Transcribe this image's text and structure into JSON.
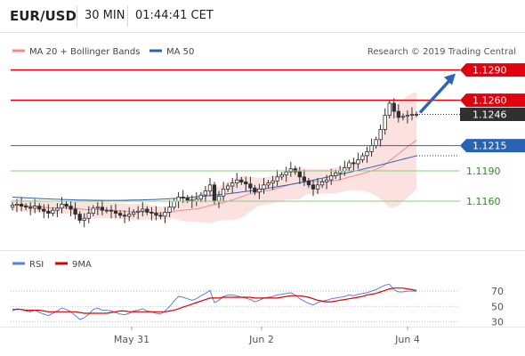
{
  "header": {
    "pair": "EUR/USD",
    "timeframe": "30 MIN",
    "time": "01:44:41 CET"
  },
  "copyright": "Research © 2019 Trading Central",
  "colors": {
    "resistance": "#e0000f",
    "ma50": "#2b63b4",
    "support": "#8ccf7e",
    "candle": "#2f2f2f",
    "bollinger_fill": "#fbd7d7",
    "ma20": "#f08a8a",
    "rsi": "#5a7fe0",
    "rsi_ma": "#e00000",
    "arrow": "#2d66b8"
  },
  "chart_data": [
    {
      "type": "line",
      "name": "price-panel",
      "legend": [
        {
          "label": "MA 20 + Bollinger Bands",
          "color": "#f08a8a"
        },
        {
          "label": "MA 50",
          "color": "#2b63b4"
        }
      ],
      "x_ticks": [
        "May 31",
        "Jun 2",
        "Jun 4"
      ],
      "levels": [
        {
          "value": 1.129,
          "label": "1.1290",
          "kind": "resistance"
        },
        {
          "value": 1.126,
          "label": "1.1260",
          "kind": "resistance"
        },
        {
          "value": 1.1246,
          "label": "1.1246",
          "kind": "last"
        },
        {
          "value": 1.1215,
          "label": "1.1215",
          "kind": "pivot"
        },
        {
          "value": 1.119,
          "label": "1.1190",
          "kind": "support"
        },
        {
          "value": 1.116,
          "label": "1.1160",
          "kind": "support"
        }
      ],
      "close": [
        1.1156,
        1.1157,
        1.1155,
        1.1154,
        1.1153,
        1.1155,
        1.1152,
        1.115,
        1.1148,
        1.1151,
        1.1153,
        1.1157,
        1.1155,
        1.1152,
        1.1147,
        1.1141,
        1.1143,
        1.1148,
        1.1153,
        1.1154,
        1.1151,
        1.1151,
        1.115,
        1.1148,
        1.1146,
        1.1145,
        1.1147,
        1.1149,
        1.115,
        1.1152,
        1.1149,
        1.1148,
        1.1146,
        1.1145,
        1.1149,
        1.1154,
        1.116,
        1.1164,
        1.1163,
        1.1161,
        1.116,
        1.1162,
        1.1166,
        1.117,
        1.1176,
        1.116,
        1.1165,
        1.1172,
        1.1175,
        1.1178,
        1.1181,
        1.1179,
        1.1177,
        1.1173,
        1.1169,
        1.1172,
        1.1176,
        1.1178,
        1.118,
        1.1184,
        1.1186,
        1.1189,
        1.1192,
        1.1189,
        1.1184,
        1.118,
        1.1176,
        1.1172,
        1.1176,
        1.1179,
        1.1181,
        1.1185,
        1.1188,
        1.119,
        1.1193,
        1.1198,
        1.1197,
        1.1201,
        1.1205,
        1.1209,
        1.1215,
        1.1221,
        1.1231,
        1.1245,
        1.1257,
        1.1249,
        1.1243,
        1.1244,
        1.1245,
        1.1246,
        1.1246
      ],
      "ma50_end": 1.1205
    },
    {
      "type": "line",
      "name": "rsi-panel",
      "legend": [
        {
          "label": "RSI",
          "color": "#5a7fe0"
        },
        {
          "label": "9MA",
          "color": "#e00000"
        }
      ],
      "y_ticks": [
        70,
        50,
        30
      ],
      "ylim": [
        20,
        90
      ],
      "rsi": [
        44,
        47,
        46,
        44,
        43,
        45,
        42,
        40,
        38,
        41,
        44,
        48,
        46,
        43,
        38,
        33,
        35,
        40,
        46,
        48,
        45,
        45,
        44,
        42,
        40,
        39,
        41,
        44,
        45,
        47,
        44,
        43,
        41,
        40,
        44,
        50,
        57,
        63,
        62,
        60,
        58,
        60,
        64,
        67,
        71,
        55,
        58,
        63,
        65,
        65,
        64,
        62,
        61,
        59,
        56,
        58,
        61,
        62,
        63,
        65,
        66,
        67,
        68,
        65,
        60,
        57,
        54,
        52,
        55,
        57,
        58,
        60,
        61,
        62,
        63,
        65,
        64,
        66,
        67,
        68,
        70,
        72,
        75,
        78,
        79,
        72,
        69,
        69,
        70,
        70,
        70
      ],
      "ma9": [
        46,
        46,
        46,
        45,
        45,
        45,
        45,
        44,
        43,
        43,
        43,
        43,
        43,
        43,
        43,
        42,
        41,
        41,
        41,
        41,
        41,
        41,
        42,
        43,
        44,
        44,
        43,
        43,
        43,
        43,
        43,
        43,
        43,
        43,
        43,
        44,
        45,
        47,
        49,
        51,
        53,
        55,
        57,
        59,
        61,
        61,
        61,
        62,
        62,
        62,
        62,
        62,
        62,
        62,
        61,
        61,
        61,
        61,
        61,
        61,
        62,
        63,
        64,
        64,
        64,
        63,
        62,
        60,
        58,
        57,
        56,
        56,
        57,
        58,
        59,
        60,
        61,
        62,
        63,
        65,
        66,
        67,
        69,
        71,
        73,
        74,
        74,
        74,
        73,
        72,
        71
      ]
    }
  ]
}
